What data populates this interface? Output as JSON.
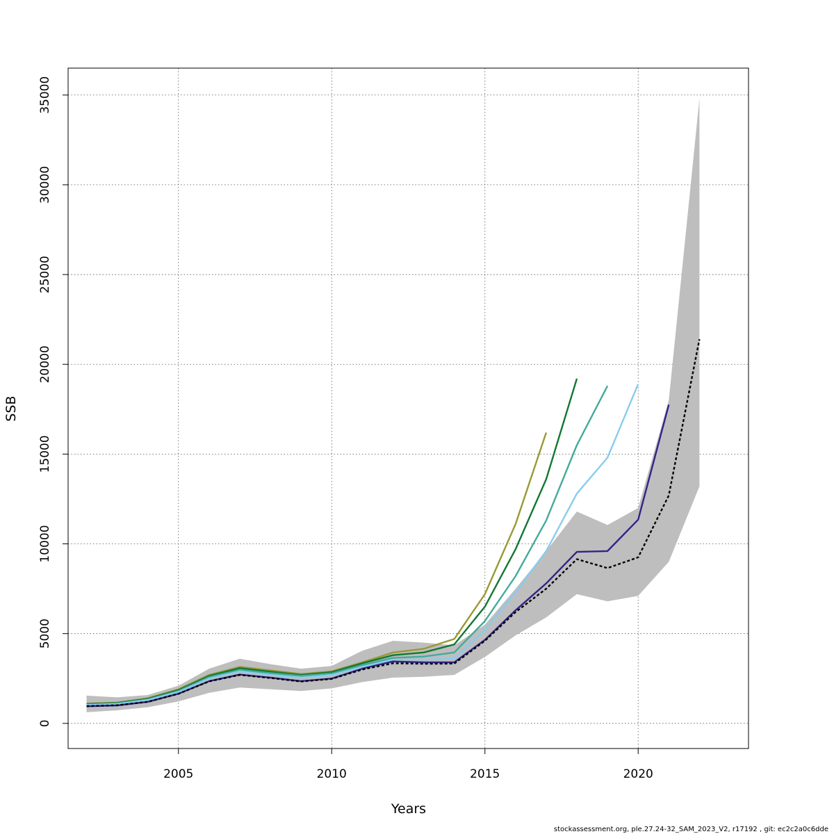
{
  "chart_data": {
    "type": "line",
    "xlabel": "Years",
    "ylabel": "SSB",
    "xlim": [
      2001.4,
      2023.6
    ],
    "ylim": [
      -1400,
      36500
    ],
    "x_ticks": [
      2005,
      2010,
      2015,
      2020
    ],
    "y_ticks": [
      0,
      5000,
      10000,
      15000,
      20000,
      25000,
      30000,
      35000
    ],
    "grid": true,
    "caption": "stockassessment.org, ple.27.24-32_SAM_2023_V2, r17192 , git: ec2c2a0c6dde",
    "confidence_band": {
      "color": "#bebebe",
      "x": [
        2002,
        2003,
        2004,
        2005,
        2006,
        2007,
        2008,
        2009,
        2010,
        2011,
        2012,
        2013,
        2014,
        2015,
        2016,
        2017,
        2018,
        2019,
        2020,
        2021,
        2022
      ],
      "lower": [
        620,
        730,
        900,
        1220,
        1700,
        2000,
        1900,
        1800,
        1950,
        2300,
        2550,
        2600,
        2700,
        3700,
        4900,
        5900,
        7200,
        6800,
        7100,
        9000,
        13200
      ],
      "upper": [
        1550,
        1450,
        1580,
        2100,
        3050,
        3600,
        3300,
        3050,
        3200,
        4050,
        4600,
        4500,
        4350,
        5500,
        7500,
        9600,
        11800,
        11050,
        12000,
        18000,
        34800
      ]
    },
    "series": [
      {
        "color": "#999933",
        "dashed": false,
        "x": [
          2002,
          2003,
          2004,
          2005,
          2006,
          2007,
          2008,
          2009,
          2010,
          2011,
          2012,
          2013,
          2014,
          2015,
          2016,
          2017
        ],
        "y": [
          1100,
          1160,
          1400,
          1900,
          2700,
          3150,
          2950,
          2750,
          2900,
          3400,
          3950,
          4150,
          4700,
          7200,
          11100,
          16200
        ]
      },
      {
        "color": "#117733",
        "dashed": false,
        "x": [
          2002,
          2003,
          2004,
          2005,
          2006,
          2007,
          2008,
          2009,
          2010,
          2011,
          2012,
          2013,
          2014,
          2015,
          2016,
          2017,
          2018
        ],
        "y": [
          1080,
          1140,
          1370,
          1850,
          2650,
          3080,
          2880,
          2700,
          2850,
          3350,
          3800,
          3950,
          4400,
          6500,
          9700,
          13600,
          19200
        ]
      },
      {
        "color": "#44AA99",
        "dashed": false,
        "x": [
          2002,
          2003,
          2004,
          2005,
          2006,
          2007,
          2008,
          2009,
          2010,
          2011,
          2012,
          2013,
          2014,
          2015,
          2016,
          2017,
          2018,
          2019
        ],
        "y": [
          1050,
          1110,
          1330,
          1800,
          2580,
          2980,
          2800,
          2650,
          2780,
          3250,
          3650,
          3720,
          3950,
          5700,
          8200,
          11300,
          15500,
          18800
        ]
      },
      {
        "color": "#88CCEE",
        "dashed": false,
        "x": [
          2002,
          2003,
          2004,
          2005,
          2006,
          2007,
          2008,
          2009,
          2010,
          2011,
          2012,
          2013,
          2014,
          2015,
          2016,
          2017,
          2018,
          2019,
          2020
        ],
        "y": [
          1020,
          1080,
          1300,
          1750,
          2500,
          2900,
          2700,
          2550,
          2700,
          3150,
          3550,
          3550,
          3600,
          5200,
          7300,
          9600,
          12800,
          14800,
          18900
        ]
      },
      {
        "color": "#332288",
        "dashed": false,
        "x": [
          2002,
          2003,
          2004,
          2005,
          2006,
          2007,
          2008,
          2009,
          2010,
          2011,
          2012,
          2013,
          2014,
          2015,
          2016,
          2017,
          2018,
          2019,
          2020,
          2021
        ],
        "y": [
          950,
          1000,
          1200,
          1650,
          2350,
          2720,
          2550,
          2350,
          2500,
          3050,
          3450,
          3400,
          3400,
          4650,
          6300,
          7800,
          9550,
          9600,
          11350,
          17750
        ]
      },
      {
        "color": "#000000",
        "dashed": true,
        "x": [
          2002,
          2003,
          2004,
          2005,
          2006,
          2007,
          2008,
          2009,
          2010,
          2011,
          2012,
          2013,
          2014,
          2015,
          2016,
          2017,
          2018,
          2019,
          2020,
          2021,
          2022
        ],
        "y": [
          960,
          1010,
          1200,
          1650,
          2340,
          2700,
          2530,
          2330,
          2480,
          3000,
          3350,
          3320,
          3330,
          4600,
          6200,
          7500,
          9150,
          8650,
          9250,
          12700,
          21400
        ]
      }
    ]
  }
}
